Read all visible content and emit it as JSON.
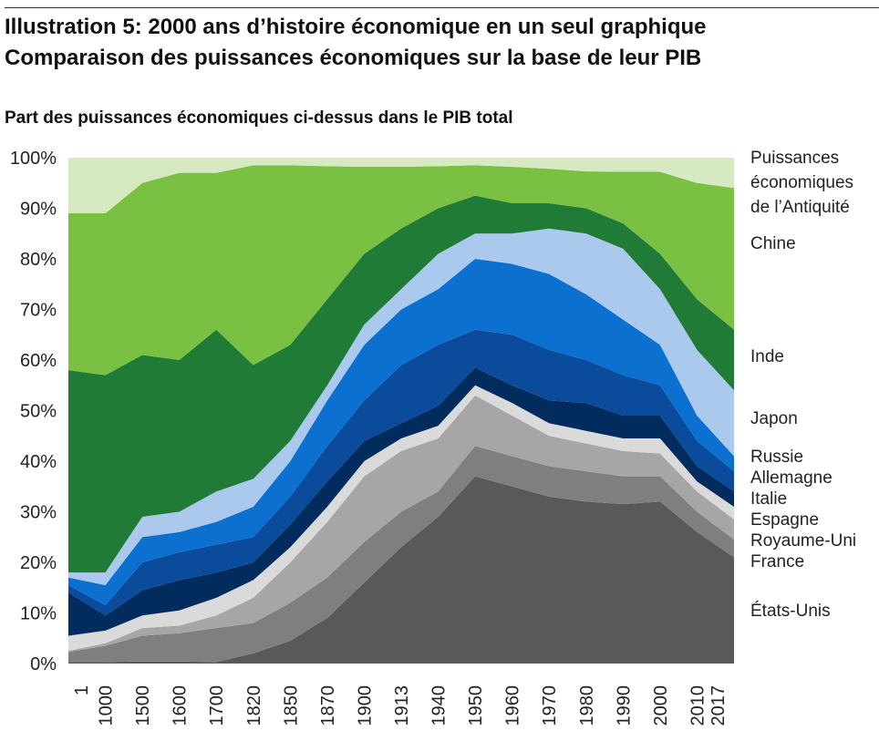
{
  "chart_data": {
    "type": "stacked_area",
    "title": "Illustration 5: 2000 ans d’histoire économique en un seul graphique",
    "subtitle": "Comparaison des puissances économiques sur la base de leur PIB",
    "y_axis_label": "Part des puissances économiques ci-dessus dans le PIB total",
    "categories": [
      "1",
      "1000",
      "1500",
      "1600",
      "1700",
      "1820",
      "1850",
      "1870",
      "1900",
      "1913",
      "1940",
      "1950",
      "1960",
      "1970",
      "1980",
      "1990",
      "2000",
      "2010",
      "2017"
    ],
    "ylim": [
      0,
      100
    ],
    "yticks": [
      {
        "value": 0,
        "label": "0%"
      },
      {
        "value": 10,
        "label": "10%"
      },
      {
        "value": 20,
        "label": "20%"
      },
      {
        "value": 30,
        "label": "30%"
      },
      {
        "value": 40,
        "label": "40%"
      },
      {
        "value": 50,
        "label": "50%"
      },
      {
        "value": 60,
        "label": "60%"
      },
      {
        "value": 70,
        "label": "70%"
      },
      {
        "value": 80,
        "label": "80%"
      },
      {
        "value": 90,
        "label": "90%"
      },
      {
        "value": 100,
        "label": "100%"
      }
    ],
    "series": [
      {
        "name": "États-Unis",
        "color": "#595959",
        "values": [
          0.3,
          0.3,
          0.4,
          0.4,
          0.3,
          2,
          4.5,
          9,
          16,
          23,
          29,
          37,
          35,
          33,
          32,
          31.5,
          32,
          26,
          21
        ]
      },
      {
        "name": "France",
        "color": "#7f7f7f",
        "values": [
          2,
          3.2,
          5.1,
          5.6,
          6.7,
          6,
          7.5,
          8,
          8,
          7,
          5,
          6,
          6,
          6,
          6,
          5.5,
          5,
          4,
          3.5
        ]
      },
      {
        "name": "Royaume-Uni",
        "color": "#a6a6a6",
        "values": [
          0.2,
          0.5,
          1.5,
          1.5,
          2.5,
          5,
          8,
          11,
          13,
          12,
          10.5,
          10,
          8,
          6,
          5.5,
          5,
          4.5,
          4,
          4
        ]
      },
      {
        "name": "Espagne",
        "color": "#dadada",
        "values": [
          3,
          2.5,
          2.5,
          3,
          3.5,
          3.5,
          3,
          3,
          3,
          2.5,
          2.5,
          2,
          2.5,
          2.5,
          2.5,
          2.5,
          3,
          2,
          2.5
        ]
      },
      {
        "name": "Italie",
        "color": "#022c5e",
        "values": [
          8.5,
          3,
          5,
          6,
          5,
          3.5,
          4.5,
          5,
          4,
          3,
          4,
          3.5,
          3.5,
          4.5,
          5.5,
          4.5,
          4.5,
          3,
          3
        ]
      },
      {
        "name": "Allemagne",
        "color": "#0a4b9b",
        "values": [
          1.5,
          2,
          5.5,
          5.5,
          5.5,
          5,
          5.5,
          7,
          8,
          11.5,
          12,
          7.5,
          10,
          10,
          8.5,
          8,
          6,
          5,
          4
        ]
      },
      {
        "name": "Russie",
        "color": "#0b70d0",
        "values": [
          1.5,
          4,
          5,
          4,
          4.5,
          6,
          7,
          9,
          11,
          11,
          11,
          14,
          14,
          15,
          13,
          11,
          8,
          5,
          3
        ]
      },
      {
        "name": "Japon",
        "color": "#abc9ec",
        "values": [
          1,
          2.5,
          4,
          4,
          6,
          5.5,
          4,
          3,
          4,
          4,
          7,
          5,
          6,
          9,
          12,
          14,
          11,
          13,
          13
        ]
      },
      {
        "name": "Inde",
        "color": "#1f7b35",
        "values": [
          40,
          39,
          32,
          30,
          32,
          22.5,
          19,
          17,
          14,
          12,
          9,
          7.5,
          6,
          5,
          5,
          5,
          7,
          10,
          12
        ]
      },
      {
        "name": "Chine",
        "color": "#7ac143",
        "values": [
          31,
          32,
          34,
          37,
          31,
          39.5,
          35.5,
          26.3,
          17.2,
          12.2,
          8.3,
          6,
          7.2,
          6.8,
          7.3,
          10.2,
          16.2,
          23,
          28
        ]
      },
      {
        "name": "Puissances économiques de l’Antiquité",
        "color": "#d6e9c1",
        "values": [
          11,
          11,
          5,
          3,
          3,
          1.5,
          1.5,
          1.7,
          1.8,
          1.8,
          1.7,
          1.5,
          1.8,
          2.2,
          2.7,
          2.8,
          2.8,
          5,
          6
        ]
      }
    ]
  }
}
